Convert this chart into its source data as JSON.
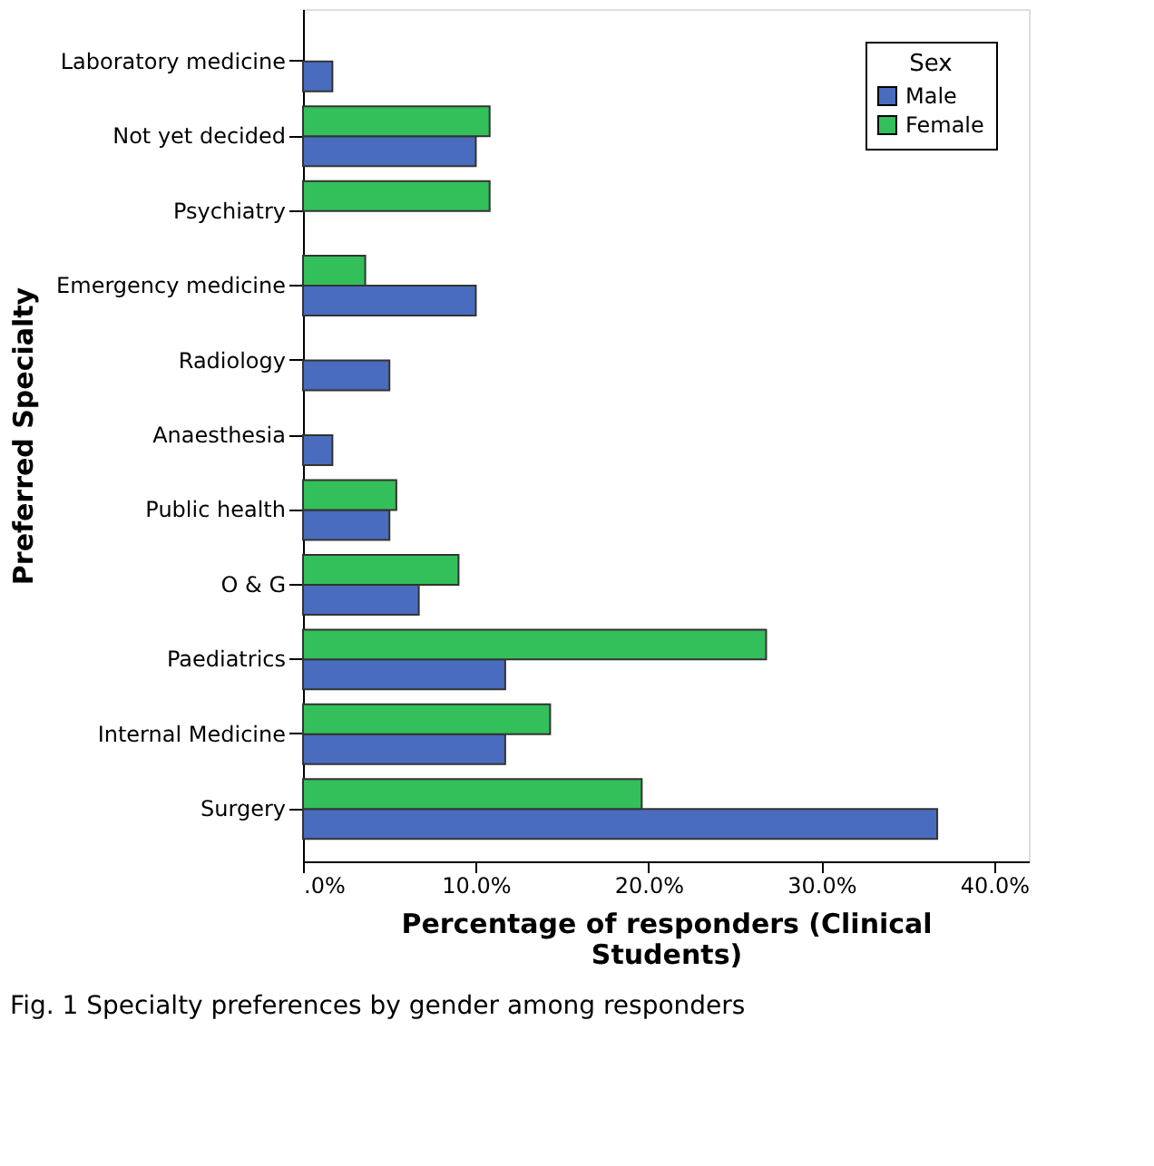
{
  "chart_data": {
    "type": "bar",
    "orientation": "horizontal",
    "xlabel": "Percentage of responders (Clinical Students)",
    "ylabel": "Preferred Specialty",
    "legend_title": "Sex",
    "legend": "top right",
    "grid": false,
    "categories": [
      "Laboratory medicine",
      "Not yet decided",
      "Psychiatry",
      "Emergency medicine",
      "Radiology",
      "Anaesthesia",
      "Public health",
      "O & G",
      "Paediatrics",
      "Internal Medicine",
      "Surgery"
    ],
    "series": [
      {
        "name": "Male",
        "color": "#4a6cbf",
        "values": [
          1.7,
          10.0,
          null,
          10.0,
          5.0,
          1.7,
          5.0,
          6.7,
          11.7,
          11.7,
          36.7
        ]
      },
      {
        "name": "Female",
        "color": "#33bf5a",
        "values": [
          null,
          10.8,
          10.8,
          3.6,
          null,
          null,
          5.4,
          9.0,
          26.8,
          14.3,
          19.6
        ]
      }
    ],
    "xlim": [
      0,
      42
    ],
    "xticks": [
      {
        "value": 0,
        "label": ".0%"
      },
      {
        "value": 10,
        "label": "10.0%"
      },
      {
        "value": 20,
        "label": "20.0%"
      },
      {
        "value": 30,
        "label": "30.0%"
      },
      {
        "value": 40,
        "label": "40.0%"
      }
    ],
    "annotations": [
      "Fig. 1 Specialty preferences by gender among responders"
    ]
  }
}
